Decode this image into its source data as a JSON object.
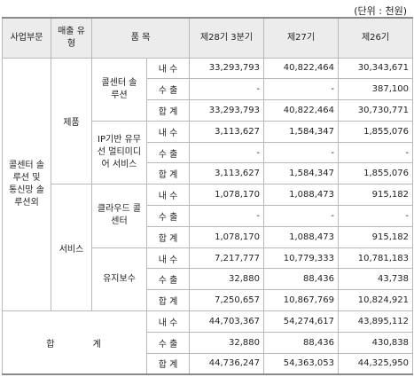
{
  "unit_note": "(단위 : 천원)",
  "headers": {
    "segment": "사업부문",
    "sales_type": "매출 유형",
    "item": "품 목",
    "p28": "제28기 3분기",
    "p27": "제27기",
    "p26": "제26기"
  },
  "labels": {
    "domestic": "내 수",
    "export": "수 출",
    "total": "합 계",
    "grand_total": "합 계"
  },
  "segment_name": "콜센터 솔루션 및 통신망 솔루션외",
  "types": {
    "product": "제품",
    "service": "서비스"
  },
  "items": {
    "callcenter": "콜센터 솔루션",
    "ip": "IP기반 유무선 멀티미디어 서비스",
    "cloud": "클라우드 콜센터",
    "maint": "유지보수"
  },
  "rows": {
    "callcenter": {
      "domestic": [
        "33,293,793",
        "40,822,464",
        "30,343,671"
      ],
      "export": [
        "-",
        "-",
        "387,100"
      ],
      "total": [
        "33,293,793",
        "40,822,464",
        "30,730,771"
      ]
    },
    "ip": {
      "domestic": [
        "3,113,627",
        "1,584,347",
        "1,855,076"
      ],
      "export": [
        "-",
        "-",
        "-"
      ],
      "total": [
        "3,113,627",
        "1,584,347",
        "1,855,076"
      ]
    },
    "cloud": {
      "domestic": [
        "1,078,170",
        "1,088,473",
        "915,182"
      ],
      "export": [
        "-",
        "-",
        "-"
      ],
      "total": [
        "1,078,170",
        "1,088,473",
        "915,182"
      ]
    },
    "maint": {
      "domestic": [
        "7,217,777",
        "10,779,333",
        "10,781,183"
      ],
      "export": [
        "32,880",
        "88,436",
        "43,738"
      ],
      "total": [
        "7,250,657",
        "10,867,769",
        "10,824,921"
      ]
    },
    "grand": {
      "domestic": [
        "44,703,367",
        "54,274,617",
        "43,895,112"
      ],
      "export": [
        "32,880",
        "88,436",
        "430,838"
      ],
      "total": [
        "44,736,247",
        "54,363,053",
        "44,325,950"
      ]
    }
  }
}
